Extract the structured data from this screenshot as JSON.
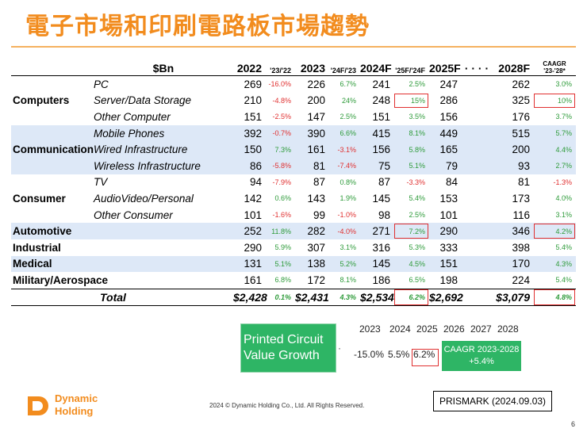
{
  "title": "電子市場和印刷電路板市場趨勢",
  "table": {
    "header": {
      "label": "$Bn",
      "y2022": "2022",
      "g2322": "'23/'22",
      "y2023": "2023",
      "g2423": "'24F/'23",
      "y2024": "2024F",
      "g2524": "'25F/'24F",
      "y2025": "2025F",
      "dots": "· · · ·",
      "y2028": "2028F",
      "caagr1": "CAAGR",
      "caagr2": "'23-'28*"
    },
    "rows": [
      {
        "cat": "",
        "sub": "PC",
        "v22": "269",
        "g1": "-16.0%",
        "v23": "226",
        "g2": "6.7%",
        "v24": "241",
        "g3": "2.5%",
        "v25": "247",
        "v28": "262",
        "c": "3.0%"
      },
      {
        "cat": "Computers",
        "sub": "Server/Data Storage",
        "v22": "210",
        "g1": "-4.8%",
        "v23": "200",
        "g2": "24%",
        "v24": "248",
        "g3": "15%",
        "v25": "286",
        "v28": "325",
        "c": "10%"
      },
      {
        "cat": "",
        "sub": "Other Computer",
        "v22": "151",
        "g1": "-2.5%",
        "v23": "147",
        "g2": "2.5%",
        "v24": "151",
        "g3": "3.5%",
        "v25": "156",
        "v28": "176",
        "c": "3.7%"
      },
      {
        "cat": "",
        "sub": "Mobile Phones",
        "v22": "392",
        "g1": "-0.7%",
        "v23": "390",
        "g2": "6.6%",
        "v24": "415",
        "g3": "8.1%",
        "v25": "449",
        "v28": "515",
        "c": "5.7%"
      },
      {
        "cat": "Communication",
        "sub": "Wired Infrastructure",
        "v22": "150",
        "g1": "7.3%",
        "v23": "161",
        "g2": "-3.1%",
        "v24": "156",
        "g3": "5.8%",
        "v25": "165",
        "v28": "200",
        "c": "4.4%"
      },
      {
        "cat": "",
        "sub": "Wireless Infrastructure",
        "v22": "86",
        "g1": "-5.8%",
        "v23": "81",
        "g2": "-7.4%",
        "v24": "75",
        "g3": "5.1%",
        "v25": "79",
        "v28": "93",
        "c": "2.7%"
      },
      {
        "cat": "",
        "sub": "TV",
        "v22": "94",
        "g1": "-7.9%",
        "v23": "87",
        "g2": "0.8%",
        "v24": "87",
        "g3": "-3.3%",
        "v25": "84",
        "v28": "81",
        "c": "-1.3%"
      },
      {
        "cat": "Consumer",
        "sub": "AudioVideo/Personal",
        "v22": "142",
        "g1": "0.6%",
        "v23": "143",
        "g2": "1.9%",
        "v24": "145",
        "g3": "5.4%",
        "v25": "153",
        "v28": "173",
        "c": "4.0%"
      },
      {
        "cat": "",
        "sub": "Other Consumer",
        "v22": "101",
        "g1": "-1.6%",
        "v23": "99",
        "g2": "-1.0%",
        "v24": "98",
        "g3": "2.5%",
        "v25": "101",
        "v28": "116",
        "c": "3.1%"
      },
      {
        "cat": "Automotive",
        "sub": "",
        "v22": "252",
        "g1": "11.8%",
        "v23": "282",
        "g2": "-4.0%",
        "v24": "271",
        "g3": "7.2%",
        "v25": "290",
        "v28": "346",
        "c": "4.2%"
      },
      {
        "cat": "Industrial",
        "sub": "",
        "v22": "290",
        "g1": "5.9%",
        "v23": "307",
        "g2": "3.1%",
        "v24": "316",
        "g3": "5.3%",
        "v25": "333",
        "v28": "398",
        "c": "5.4%"
      },
      {
        "cat": "Medical",
        "sub": "",
        "v22": "131",
        "g1": "5.1%",
        "v23": "138",
        "g2": "5.2%",
        "v24": "145",
        "g3": "4.5%",
        "v25": "151",
        "v28": "170",
        "c": "4.3%"
      },
      {
        "cat": "Military/Aerospace",
        "sub": "",
        "v22": "161",
        "g1": "6.8%",
        "v23": "172",
        "g2": "8.1%",
        "v24": "186",
        "g3": "6.5%",
        "v25": "198",
        "v28": "224",
        "c": "5.4%"
      }
    ],
    "total": {
      "label": "Total",
      "v22": "$2,428",
      "g1": "0.1%",
      "v23": "$2,431",
      "g2": "4.3%",
      "v24": "$2,534",
      "g3": "6.2%",
      "v25": "$2,692",
      "v28": "$3,079",
      "c": "4.8%"
    }
  },
  "pcb": {
    "label_line1": "Printed Circuit",
    "label_line2": "Value Growth",
    "arrow": "·",
    "years": [
      "2023",
      "2024",
      "2025",
      "2026",
      "2027",
      "2028"
    ],
    "v2023": "-15.0%",
    "v2024": "5.5%",
    "v2025": "6.2%",
    "caagr_line1": "CAAGR 2023-2028",
    "caagr_line2": "+5.4%"
  },
  "footer": {
    "logo_line1": "Dynamic",
    "logo_line2": "Holding",
    "copyright": "2024 © Dynamic Holding Co., Ltd. All Rights Reserved.",
    "source": "PRISMARK (2024.09.03)",
    "page": "6"
  },
  "colors": {
    "accent": "#f28c1e",
    "green": "#2eb565",
    "red": "#e03030",
    "shade": "#dde8f7"
  }
}
